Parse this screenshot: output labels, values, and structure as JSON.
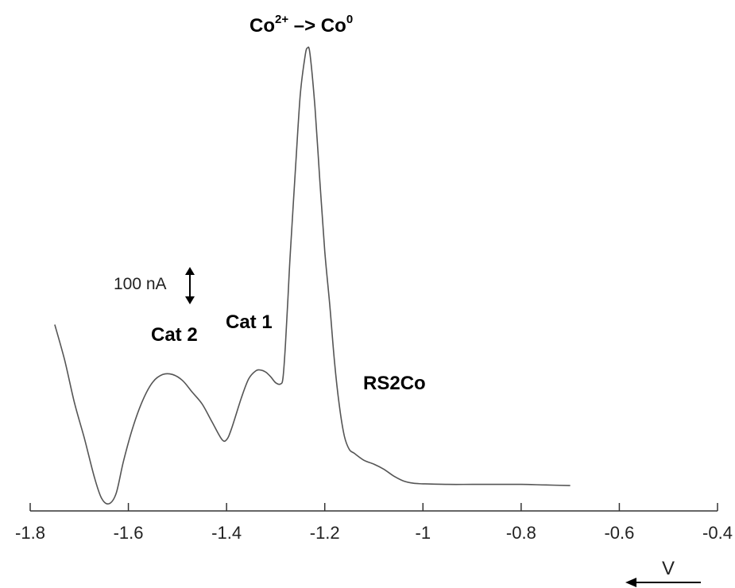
{
  "chart_data": {
    "type": "line",
    "xlabel": "V",
    "ylabel": "",
    "xlim": [
      -1.8,
      -0.4
    ],
    "x_ticks": [
      "-1.8",
      "-1.6",
      "-1.4",
      "-1.2",
      "-1",
      "-0.8",
      "-0.6",
      "-0.4"
    ],
    "scale_bar_label": "100 nA",
    "y_unit_nA": 100,
    "series": [
      {
        "x": [
          -1.75,
          -1.73,
          -1.71,
          -1.69,
          -1.67,
          -1.655,
          -1.64,
          -1.625,
          -1.61,
          -1.59,
          -1.57,
          -1.55,
          -1.53,
          -1.51,
          -1.49,
          -1.47,
          -1.45,
          -1.43,
          -1.41,
          -1.4,
          -1.39,
          -1.37,
          -1.355,
          -1.34,
          -1.33,
          -1.32,
          -1.31,
          -1.3,
          -1.29,
          -1.285,
          -1.28,
          -1.275,
          -1.27,
          -1.26,
          -1.25,
          -1.24,
          -1.235,
          -1.23,
          -1.22,
          -1.21,
          -1.2,
          -1.19,
          -1.18,
          -1.17,
          -1.16,
          -1.15,
          -1.14,
          -1.12,
          -1.1,
          -1.08,
          -1.06,
          -1.04,
          -1.02,
          -1.0,
          -0.95,
          -0.9,
          -0.85,
          -0.8,
          -0.75,
          -0.7
        ],
        "y": [
          610,
          490,
          345,
          225,
          95,
          20,
          0,
          35,
          145,
          265,
          355,
          415,
          440,
          440,
          420,
          380,
          340,
          280,
          220,
          218,
          255,
          360,
          425,
          453,
          455,
          448,
          432,
          412,
          408,
          430,
          545,
          700,
          860,
          1130,
          1390,
          1525,
          1552,
          1530,
          1350,
          1100,
          860,
          680,
          480,
          330,
          230,
          185,
          172,
          148,
          135,
          118,
          95,
          78,
          70,
          68,
          66,
          66,
          66,
          66,
          64,
          62
        ]
      }
    ],
    "annotations": [
      {
        "text": "Cat 2",
        "x": -1.5
      },
      {
        "text": "Cat 1",
        "x": -1.33
      },
      {
        "text": "RS2Co",
        "x": -1.105
      },
      {
        "text_parts": [
          "Co",
          "2+",
          " –> Co",
          "0"
        ],
        "x": -1.23
      }
    ],
    "grid": false,
    "legend": "none",
    "line_color": "#555555",
    "axis_color": "#333333"
  }
}
